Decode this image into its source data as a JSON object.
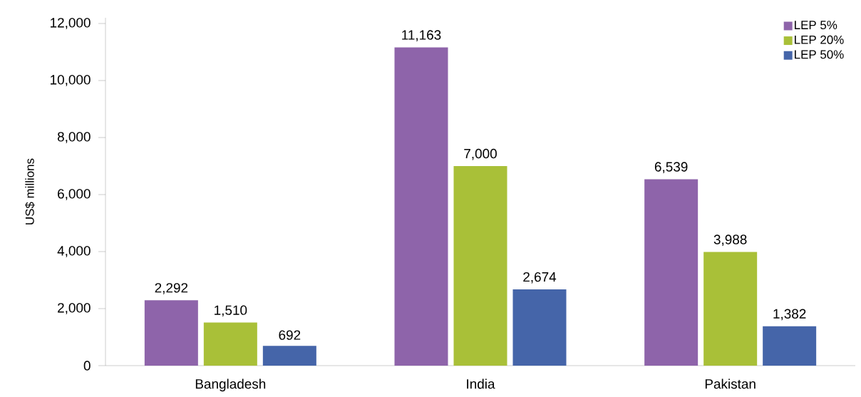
{
  "chart_data": {
    "type": "bar",
    "ylabel": "US$ millions",
    "categories": [
      "Bangladesh",
      "India",
      "Pakistan"
    ],
    "series": [
      {
        "name": "LEP 5%",
        "color": "#8e64aa",
        "values": [
          2292,
          11163,
          6539
        ],
        "value_labels": [
          "2,292",
          "11,163",
          "6,539"
        ]
      },
      {
        "name": "LEP 20%",
        "color": "#a9c038",
        "values": [
          1510,
          7000,
          3988
        ],
        "value_labels": [
          "1,510",
          "7,000",
          "3,988"
        ]
      },
      {
        "name": "LEP 50%",
        "color": "#4565a9",
        "values": [
          692,
          2674,
          1382
        ],
        "value_labels": [
          "692",
          "2,674",
          "1,382"
        ]
      }
    ],
    "ylim": [
      0,
      12200
    ],
    "yticks": [
      0,
      {
        "value": 2000,
        "label": "2,000"
      },
      {
        "value": 4000,
        "label": "4,000"
      },
      {
        "value": 6000,
        "label": "6,000"
      },
      {
        "value": 8000,
        "label": "8,000"
      },
      {
        "value": 10000,
        "label": "10,000"
      },
      {
        "value": 12000,
        "label": "12,000"
      }
    ],
    "legend": "top right",
    "grid": false
  }
}
